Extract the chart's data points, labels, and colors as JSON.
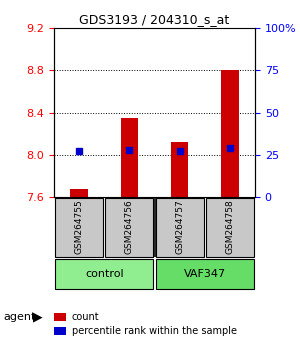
{
  "title": "GDS3193 / 204310_s_at",
  "samples": [
    "GSM264755",
    "GSM264756",
    "GSM264757",
    "GSM264758"
  ],
  "groups": [
    "control",
    "control",
    "VAF347",
    "VAF347"
  ],
  "group_labels": [
    "control",
    "VAF347"
  ],
  "group_colors": [
    "#90EE90",
    "#00CC00"
  ],
  "bar_values": [
    7.68,
    8.35,
    8.12,
    8.8
  ],
  "dot_values": [
    0.27,
    0.28,
    0.27,
    0.29
  ],
  "ylim_left": [
    7.6,
    9.2
  ],
  "ylim_right": [
    0,
    100
  ],
  "yticks_left": [
    7.6,
    8.0,
    8.4,
    8.8,
    9.2
  ],
  "yticks_right": [
    0,
    25,
    50,
    75,
    100
  ],
  "ytick_labels_right": [
    "0",
    "25",
    "50",
    "75",
    "100%"
  ],
  "bar_color": "#CC0000",
  "dot_color": "#0000CC",
  "bar_bottom": 7.6,
  "dot_scale_min": 7.6,
  "dot_scale_max": 9.2,
  "legend_count_label": "count",
  "legend_pct_label": "percentile rank within the sample",
  "agent_label": "agent"
}
